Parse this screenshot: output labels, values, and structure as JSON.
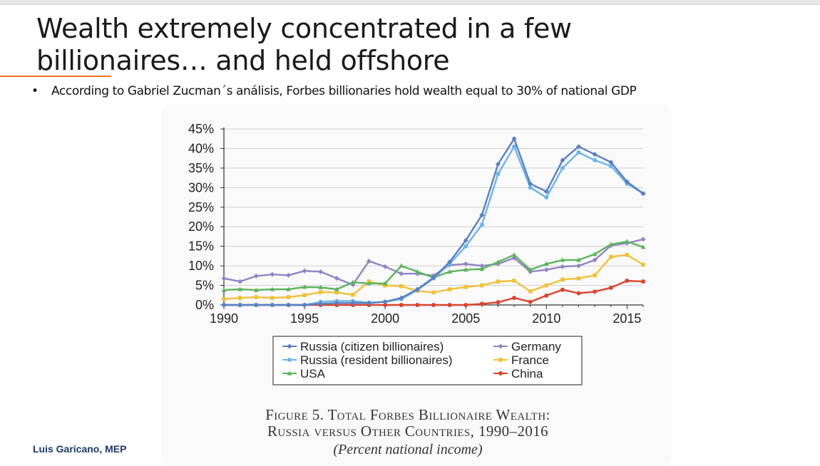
{
  "slide": {
    "title_line1": "Wealth extremely concentrated in a few",
    "title_line2": "billionaires… and held offshore",
    "bullet_marker": "•",
    "bullet_text": "According to Gabriel Zucman´s análisis, Forbes billionaries hold wealth equal to 30% of national GDP",
    "footer": "Luis Garicano, MEP",
    "accent_color": "#e87722",
    "footer_color": "#1f3864"
  },
  "caption": {
    "line1": "Figure 5. Total Forbes Billionaire Wealth:",
    "line2": "Russia versus Other Countries, 1990–2016",
    "line3": "(Percent national income)"
  },
  "chart_data": {
    "type": "line",
    "title": "Figure 5. Total Forbes Billionaire Wealth: Russia versus Other Countries, 1990–2016",
    "xlabel": "",
    "ylabel": "",
    "xlim": [
      1990,
      2016
    ],
    "ylim": [
      0,
      45
    ],
    "x_ticks": [
      1990,
      1995,
      2000,
      2005,
      2010,
      2015
    ],
    "y_ticks": [
      0,
      5,
      10,
      15,
      20,
      25,
      30,
      35,
      40,
      45
    ],
    "y_tick_labels": [
      "0%",
      "5%",
      "10%",
      "15%",
      "20%",
      "25%",
      "30%",
      "35%",
      "40%",
      "45%"
    ],
    "grid": "horizontal",
    "legend_position": "bottom",
    "x": [
      1990,
      1991,
      1992,
      1993,
      1994,
      1995,
      1996,
      1997,
      1998,
      1999,
      2000,
      2001,
      2002,
      2003,
      2004,
      2005,
      2006,
      2007,
      2008,
      2009,
      2010,
      2011,
      2012,
      2013,
      2014,
      2015,
      2016
    ],
    "series": [
      {
        "name": "Russia (citizen billionaires)",
        "color": "#5b7fc0",
        "values": [
          0,
          0,
          0,
          0,
          0,
          0,
          0.3,
          0.5,
          0.5,
          0.5,
          0.8,
          1.8,
          4,
          7,
          11,
          16.5,
          23,
          36,
          42.5,
          31,
          29,
          37,
          40.5,
          38.5,
          36.5,
          31.5,
          28.5
        ]
      },
      {
        "name": "Russia (resident billionaires)",
        "color": "#6cb4e4",
        "values": [
          0,
          0,
          0,
          0,
          0,
          0,
          0.8,
          1,
          1,
          0.6,
          0.8,
          1.5,
          3.8,
          6.8,
          10.5,
          15,
          20.5,
          33.5,
          40.5,
          30,
          27.5,
          35,
          39,
          37,
          35.5,
          31,
          28.5
        ]
      },
      {
        "name": "USA",
        "color": "#5db35d",
        "values": [
          3.8,
          4,
          3.8,
          4,
          4,
          4.6,
          4.5,
          4,
          5.8,
          5.5,
          5.5,
          10,
          8.5,
          7,
          8.5,
          9,
          9.2,
          11,
          12.8,
          9,
          10.5,
          11.5,
          11.5,
          13,
          15.5,
          16.2,
          14.8
        ]
      },
      {
        "name": "Germany",
        "color": "#9184c4",
        "values": [
          6.8,
          6,
          7.4,
          7.8,
          7.6,
          8.7,
          8.5,
          6.8,
          5.2,
          11.2,
          9.8,
          8,
          8,
          7.5,
          10.2,
          10.5,
          10,
          10.5,
          12,
          8.5,
          9,
          9.8,
          10,
          11.5,
          15.2,
          15.8,
          16.8
        ]
      },
      {
        "name": "France",
        "color": "#f0c13a",
        "values": [
          1.5,
          1.8,
          2,
          1.8,
          2,
          2.5,
          3.3,
          3.2,
          2.6,
          6,
          5,
          4.8,
          3.6,
          3.2,
          4,
          4.6,
          5,
          6,
          6.2,
          3.5,
          5,
          6.5,
          6.8,
          7.6,
          12.3,
          12.8,
          10.3
        ]
      },
      {
        "name": "China",
        "color": "#d9452c",
        "values": [
          0,
          0,
          0,
          0,
          0,
          0,
          0,
          0,
          0,
          0,
          0,
          0,
          0,
          0,
          0,
          0,
          0.3,
          0.7,
          1.8,
          0.8,
          2.4,
          3.9,
          3,
          3.4,
          4.4,
          6.2,
          6
        ]
      }
    ],
    "legend": [
      "Russia (citizen billionaires)",
      "Russia (resident billionaires)",
      "USA",
      "Germany",
      "France",
      "China"
    ]
  }
}
